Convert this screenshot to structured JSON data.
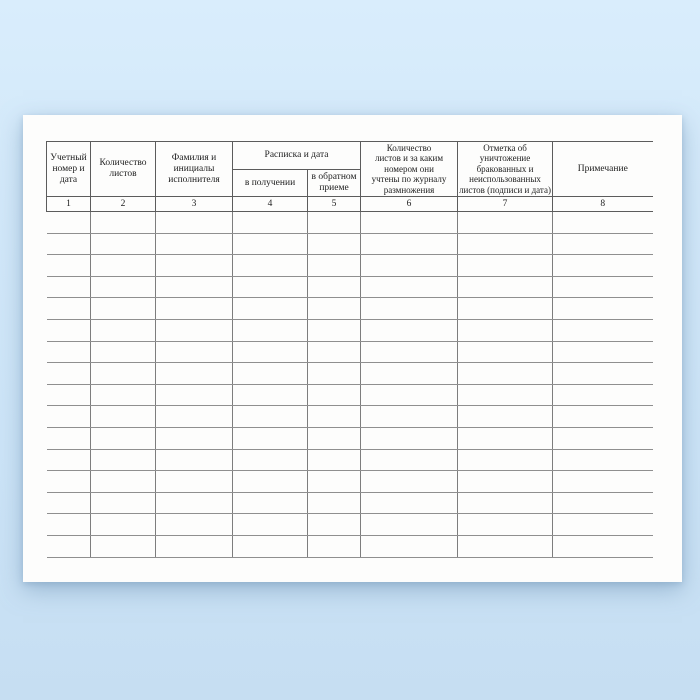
{
  "page": {
    "background_color": "#cce4f7",
    "paper_color": "#fdfdfc"
  },
  "table": {
    "group_header": "Расписка и дата",
    "columns": [
      {
        "number": "1",
        "header": "Учетный\nномер и\nдата"
      },
      {
        "number": "2",
        "header": "Количество\nлистов"
      },
      {
        "number": "3",
        "header": "Фамилия и\nинициалы\nисполнителя"
      },
      {
        "number": "4",
        "header": "в получении"
      },
      {
        "number": "5",
        "header": "в обратном\nприеме"
      },
      {
        "number": "6",
        "header": "Количество\nлистов и за каким\nномером они\nучтены по журналу\nразмножения"
      },
      {
        "number": "7",
        "header": "Отметка об уничтожение\nбракованных и\nнеиспользованных\nлистов (подписи и дата)"
      },
      {
        "number": "8",
        "header": "Примечание"
      }
    ],
    "body_rows": 16,
    "body_cells_per_row": 8
  }
}
